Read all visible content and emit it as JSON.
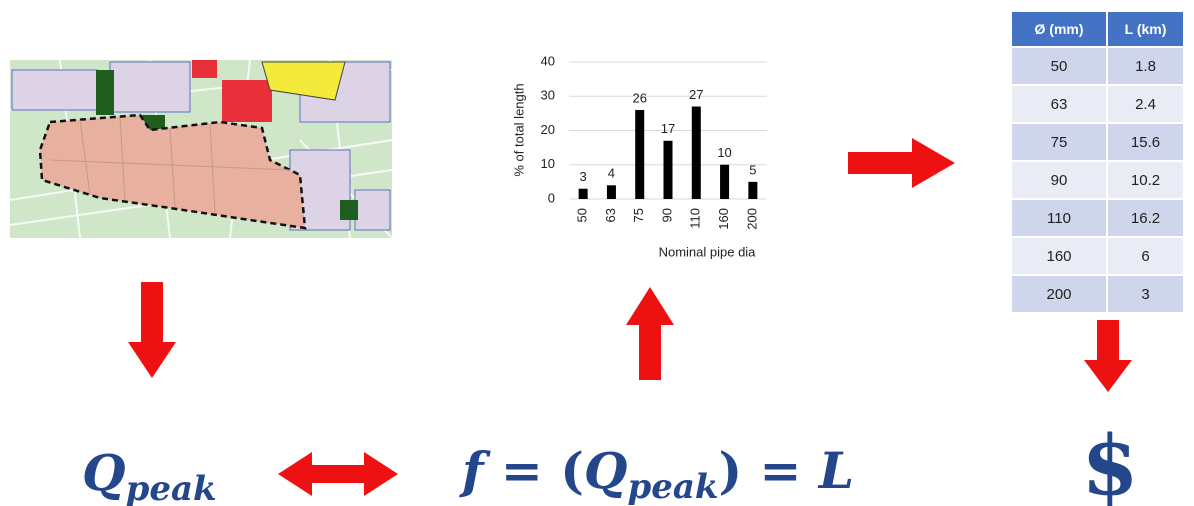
{
  "chart_data": {
    "type": "bar",
    "y_label": "% of total length",
    "x_label": "Nominal pipe dia",
    "categories": [
      "50",
      "63",
      "75",
      "90",
      "110",
      "160",
      "200"
    ],
    "values": [
      3,
      4,
      26,
      17,
      27,
      10,
      5
    ],
    "color": "#000000",
    "ylim": [
      0,
      40
    ],
    "yticks": [
      0,
      10,
      20,
      30,
      40
    ],
    "grid": true
  },
  "table": {
    "header": [
      "Ø (mm)",
      "L (km)"
    ],
    "rows": [
      [
        50,
        1.8
      ],
      [
        63,
        2.4
      ],
      [
        75,
        15.6
      ],
      [
        90,
        10.2
      ],
      [
        110,
        16.2
      ],
      [
        160,
        6
      ],
      [
        200,
        3
      ]
    ]
  },
  "formulas": {
    "left": {
      "symbol": "Q",
      "subscript": "peak"
    },
    "middle": {
      "function": "f",
      "open": " = (",
      "symbol": "Q",
      "subscript": "peak",
      "close": ") = ",
      "result": "L"
    },
    "right": "$"
  }
}
